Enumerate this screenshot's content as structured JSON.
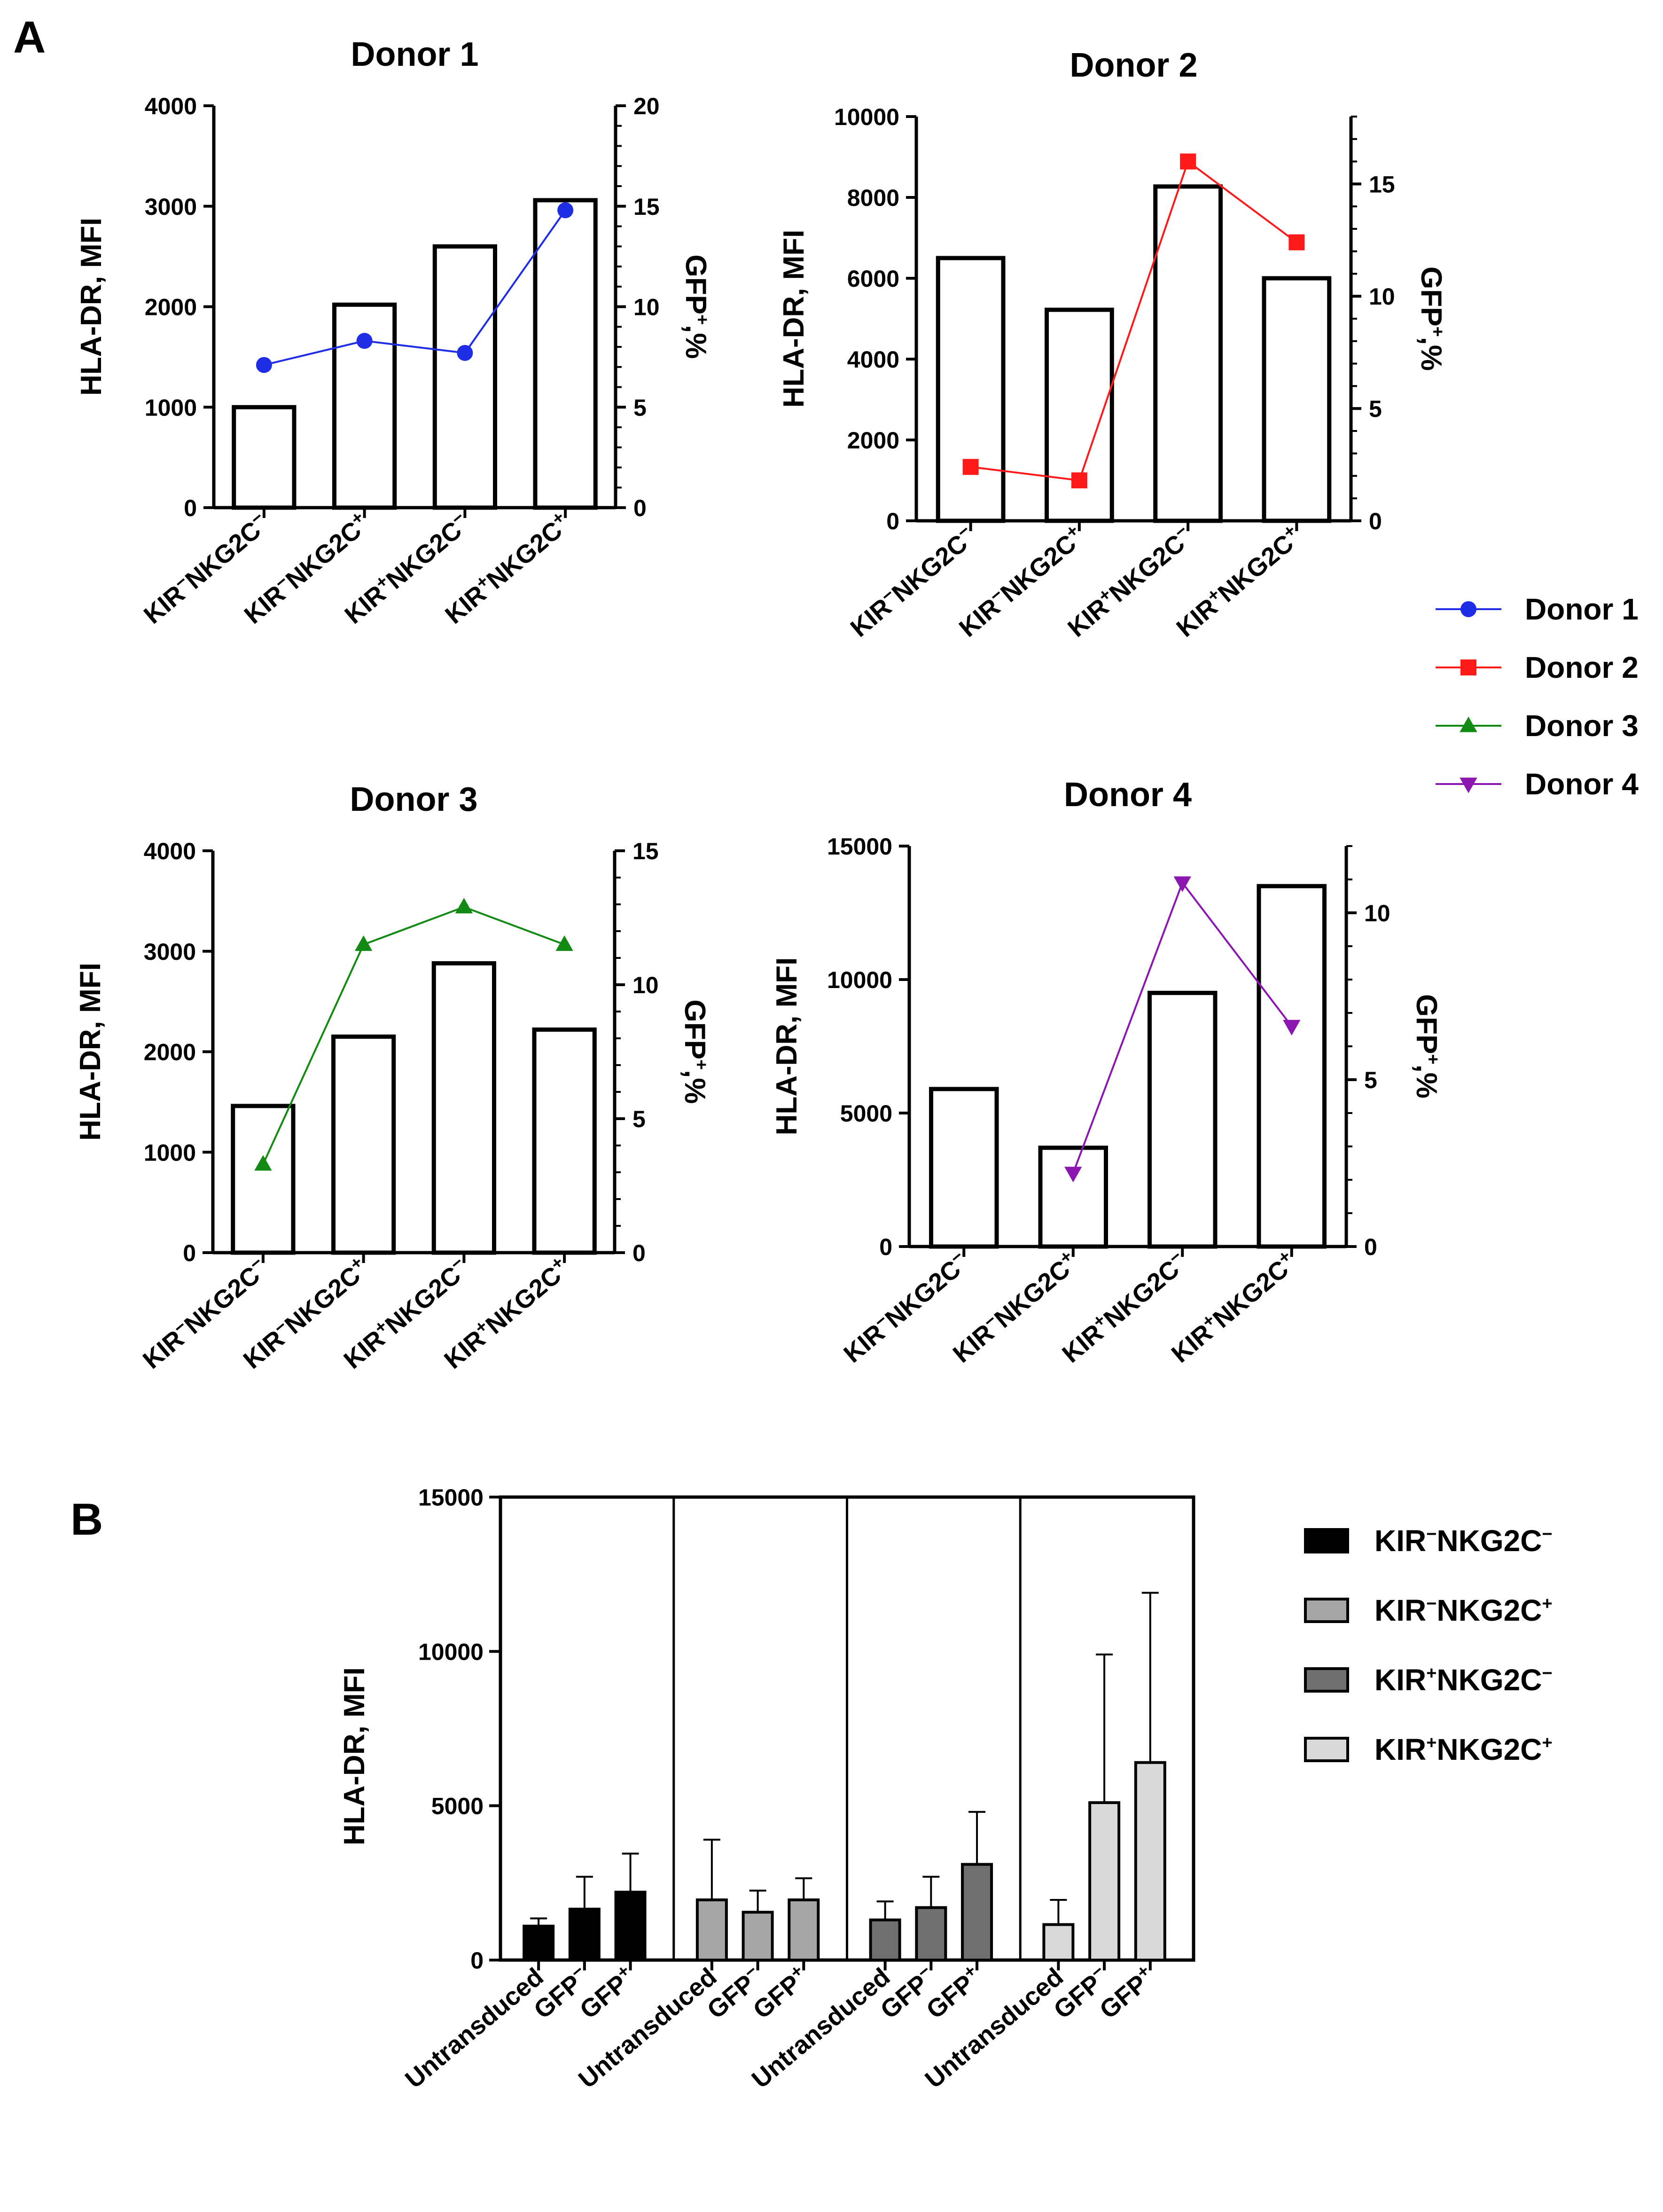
{
  "figure": {
    "panel_a_label": "A",
    "panel_b_label": "B"
  },
  "colors": {
    "donor1": "#1f2ee6",
    "donor2": "#ff1a1a",
    "donor3": "#138a13",
    "donor4": "#8b17b0",
    "bar_kir_neg_nkg2c_neg": "#000000",
    "bar_kir_neg_nkg2c_pos": "#a6a6a6",
    "bar_kir_pos_nkg2c_neg": "#6f6f6f",
    "bar_kir_pos_nkg2c_pos": "#d9d9d9"
  },
  "chart_data": [
    {
      "id": "donor1",
      "type": "bar+line",
      "title": "Donor 1",
      "ylabel": "HLA-DR, MFI",
      "y2label": "GFP+,%",
      "categories": [
        {
          "kir": "KIR",
          "kir_sup": "−",
          "nkg": "NKG2C",
          "nkg_sup": "−"
        },
        {
          "kir": "KIR",
          "kir_sup": "−",
          "nkg": "NKG2C",
          "nkg_sup": "+"
        },
        {
          "kir": "KIR",
          "kir_sup": "+",
          "nkg": "NKG2C",
          "nkg_sup": "−"
        },
        {
          "kir": "KIR",
          "kir_sup": "+",
          "nkg": "NKG2C",
          "nkg_sup": "+"
        }
      ],
      "bar_values": [
        1000,
        2020,
        2600,
        3060
      ],
      "line_values": [
        7.1,
        8.3,
        7.7,
        14.8
      ],
      "line_series": "Donor 1",
      "marker": "circle",
      "ylim": [
        0,
        4000
      ],
      "yticks": [
        0,
        1000,
        2000,
        3000,
        4000
      ],
      "y2lim": [
        0,
        20
      ],
      "y2ticks": [
        0,
        5,
        10,
        15,
        20
      ]
    },
    {
      "id": "donor2",
      "type": "bar+line",
      "title": "Donor 2",
      "ylabel": "HLA-DR, MFI",
      "y2label": "GFP+,%",
      "categories": [
        {
          "kir": "KIR",
          "kir_sup": "−",
          "nkg": "NKG2C",
          "nkg_sup": "−"
        },
        {
          "kir": "KIR",
          "kir_sup": "−",
          "nkg": "NKG2C",
          "nkg_sup": "+"
        },
        {
          "kir": "KIR",
          "kir_sup": "+",
          "nkg": "NKG2C",
          "nkg_sup": "−"
        },
        {
          "kir": "KIR",
          "kir_sup": "+",
          "nkg": "NKG2C",
          "nkg_sup": "+"
        }
      ],
      "bar_values": [
        6500,
        5220,
        8270,
        6000
      ],
      "line_values": [
        2.4,
        1.8,
        16.0,
        12.4
      ],
      "line_series": "Donor 2",
      "marker": "square",
      "ylim": [
        0,
        10000
      ],
      "yticks": [
        0,
        2000,
        4000,
        6000,
        8000,
        10000
      ],
      "y2lim": [
        0,
        18
      ],
      "y2ticks": [
        0,
        5,
        10,
        15
      ]
    },
    {
      "id": "donor3",
      "type": "bar+line",
      "title": "Donor 3",
      "ylabel": "HLA-DR, MFI",
      "y2label": "GFP+,%",
      "categories": [
        {
          "kir": "KIR",
          "kir_sup": "−",
          "nkg": "NKG2C",
          "nkg_sup": "−"
        },
        {
          "kir": "KIR",
          "kir_sup": "−",
          "nkg": "NKG2C",
          "nkg_sup": "+"
        },
        {
          "kir": "KIR",
          "kir_sup": "+",
          "nkg": "NKG2C",
          "nkg_sup": "−"
        },
        {
          "kir": "KIR",
          "kir_sup": "+",
          "nkg": "NKG2C",
          "nkg_sup": "+"
        }
      ],
      "bar_values": [
        1460,
        2150,
        2880,
        2220
      ],
      "line_values": [
        3.3,
        11.5,
        12.9,
        11.5
      ],
      "line_series": "Donor 3",
      "marker": "triangle-up",
      "ylim": [
        0,
        4000
      ],
      "yticks": [
        0,
        1000,
        2000,
        3000,
        4000
      ],
      "y2lim": [
        0,
        15
      ],
      "y2ticks": [
        0,
        5,
        10,
        15
      ]
    },
    {
      "id": "donor4",
      "type": "bar+line",
      "title": "Donor 4",
      "ylabel": "HLA-DR, MFI",
      "y2label": "GFP+,%",
      "categories": [
        {
          "kir": "KIR",
          "kir_sup": "−",
          "nkg": "NKG2C",
          "nkg_sup": "−"
        },
        {
          "kir": "KIR",
          "kir_sup": "−",
          "nkg": "NKG2C",
          "nkg_sup": "+"
        },
        {
          "kir": "KIR",
          "kir_sup": "+",
          "nkg": "NKG2C",
          "nkg_sup": "−"
        },
        {
          "kir": "KIR",
          "kir_sup": "+",
          "nkg": "NKG2C",
          "nkg_sup": "+"
        }
      ],
      "bar_values": [
        5900,
        3700,
        9500,
        13500
      ],
      "line_values": [
        null,
        2.2,
        10.9,
        6.6
      ],
      "line_series": "Donor 4",
      "marker": "triangle-down",
      "ylim": [
        0,
        15000
      ],
      "yticks": [
        0,
        5000,
        10000,
        15000
      ],
      "y2lim": [
        0,
        12
      ],
      "y2ticks": [
        0,
        5,
        10
      ]
    },
    {
      "id": "panel_b",
      "type": "bar",
      "ylabel": "HLA-DR, MFI",
      "ylim": [
        0,
        15000
      ],
      "yticks": [
        0,
        5000,
        10000,
        15000
      ],
      "groups": [
        {
          "name": "KIR−NKG2C−",
          "color_key": "bar_kir_neg_nkg2c_neg",
          "values": [
            1100,
            1650,
            2200
          ],
          "errors": [
            1350,
            2700,
            3450
          ]
        },
        {
          "name": "KIR−NKG2C+",
          "color_key": "bar_kir_neg_nkg2c_pos",
          "values": [
            1950,
            1550,
            1950
          ],
          "errors": [
            3900,
            2250,
            2650
          ]
        },
        {
          "name": "KIR+NKG2C−",
          "color_key": "bar_kir_pos_nkg2c_neg",
          "values": [
            1300,
            1700,
            3100
          ],
          "errors": [
            1900,
            2700,
            4800
          ]
        },
        {
          "name": "KIR+NKG2C+",
          "color_key": "bar_kir_pos_nkg2c_pos",
          "values": [
            1150,
            5100,
            6400
          ],
          "errors": [
            1950,
            9900,
            11900
          ]
        }
      ],
      "bar_labels": [
        {
          "text": "Untransduced",
          "sup": ""
        },
        {
          "text": "GFP",
          "sup": "−"
        },
        {
          "text": "GFP",
          "sup": "+"
        }
      ]
    }
  ],
  "legend_a": [
    {
      "label": "Donor 1",
      "color_key": "donor1",
      "marker": "circle"
    },
    {
      "label": "Donor 2",
      "color_key": "donor2",
      "marker": "square"
    },
    {
      "label": "Donor 3",
      "color_key": "donor3",
      "marker": "triangle-up"
    },
    {
      "label": "Donor 4",
      "color_key": "donor4",
      "marker": "triangle-down"
    }
  ],
  "legend_b": [
    {
      "kir": "KIR",
      "kir_sup": "−",
      "nkg": "NKG2C",
      "nkg_sup": "−",
      "color_key": "bar_kir_neg_nkg2c_neg"
    },
    {
      "kir": "KIR",
      "kir_sup": "−",
      "nkg": "NKG2C",
      "nkg_sup": "+",
      "color_key": "bar_kir_neg_nkg2c_pos"
    },
    {
      "kir": "KIR",
      "kir_sup": "+",
      "nkg": "NKG2C",
      "nkg_sup": "−",
      "color_key": "bar_kir_pos_nkg2c_neg"
    },
    {
      "kir": "KIR",
      "kir_sup": "+",
      "nkg": "NKG2C",
      "nkg_sup": "+",
      "color_key": "bar_kir_pos_nkg2c_pos"
    }
  ]
}
